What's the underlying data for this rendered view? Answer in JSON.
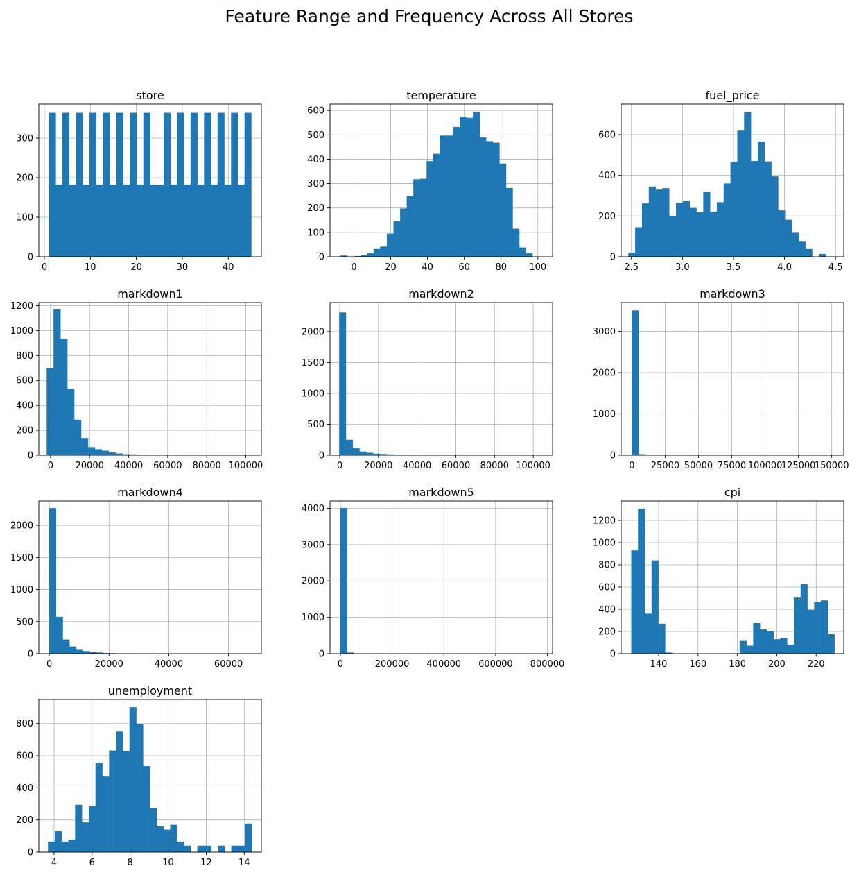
{
  "figure": {
    "title": "Feature Range and Frequency Across All Stores"
  },
  "colors": {
    "bar": "#1f77b4",
    "grid": "#b0b0b0",
    "axis": "#000000"
  },
  "chart_data": [
    {
      "type": "bar",
      "title": "store",
      "xlim": [
        -1.2,
        47.2
      ],
      "ylim": [
        0,
        386
      ],
      "xticks": [
        0,
        10,
        20,
        30,
        40
      ],
      "xtick_labels": [
        "0",
        "10",
        "20",
        "30",
        "40"
      ],
      "yticks": [
        0,
        100,
        200,
        300
      ],
      "ytick_labels": [
        "0",
        "100",
        "200",
        "300"
      ],
      "bin_start": 1,
      "bin_width": 1.4667,
      "values": [
        364,
        182,
        364,
        182,
        364,
        182,
        364,
        182,
        364,
        182,
        364,
        182,
        364,
        182,
        364,
        182,
        182,
        364,
        182,
        364,
        182,
        364,
        182,
        364,
        182,
        364,
        182,
        364,
        182,
        364
      ]
    },
    {
      "type": "bar",
      "title": "temperature",
      "xlim": [
        -13,
        108
      ],
      "ylim": [
        0,
        626
      ],
      "xticks": [
        0,
        20,
        40,
        60,
        80,
        100
      ],
      "xtick_labels": [
        "0",
        "20",
        "40",
        "60",
        "80",
        "100"
      ],
      "yticks": [
        0,
        100,
        200,
        300,
        400,
        500,
        600
      ],
      "ytick_labels": [
        "0",
        "100",
        "200",
        "300",
        "400",
        "500",
        "600"
      ],
      "bin_start": -7.3,
      "bin_width": 3.6,
      "values": [
        5,
        0,
        3,
        6,
        14,
        32,
        42,
        95,
        145,
        198,
        248,
        318,
        320,
        392,
        422,
        497,
        497,
        532,
        574,
        570,
        594,
        490,
        474,
        468,
        382,
        282,
        115,
        38,
        14
      ]
    },
    {
      "type": "bar",
      "title": "fuel_price",
      "xlim": [
        2.4,
        4.58
      ],
      "ylim": [
        0,
        750
      ],
      "xticks": [
        2.5,
        3.0,
        3.5,
        4.0,
        4.5
      ],
      "xtick_labels": [
        "2.5",
        "3.0",
        "3.5",
        "4.0",
        "4.5"
      ],
      "yticks": [
        0,
        200,
        400,
        600
      ],
      "ytick_labels": [
        "0",
        "200",
        "400",
        "600"
      ],
      "bin_start": 2.47,
      "bin_width": 0.0667,
      "values": [
        20,
        145,
        262,
        345,
        330,
        337,
        200,
        265,
        275,
        240,
        218,
        320,
        222,
        268,
        360,
        465,
        620,
        712,
        470,
        565,
        468,
        395,
        228,
        182,
        118,
        74,
        38,
        0,
        14
      ]
    },
    {
      "type": "bar",
      "title": "markdown1",
      "xlim": [
        -6000,
        108000
      ],
      "ylim": [
        0,
        1225
      ],
      "xticks": [
        0,
        20000,
        40000,
        60000,
        80000,
        100000
      ],
      "xtick_labels": [
        "0",
        "20000",
        "40000",
        "60000",
        "80000",
        "100000"
      ],
      "yticks": [
        0,
        200,
        400,
        600,
        800,
        1000,
        1200
      ],
      "ytick_labels": [
        "0",
        "200",
        "400",
        "600",
        "800",
        "1000",
        "1200"
      ],
      "bin_start": -2000,
      "bin_width": 3530,
      "values": [
        700,
        1170,
        935,
        535,
        285,
        138,
        65,
        48,
        36,
        22,
        14,
        8,
        7,
        2,
        2,
        4,
        4,
        2,
        2,
        1,
        0,
        0,
        0,
        0,
        0,
        0,
        0,
        0,
        0,
        1
      ]
    },
    {
      "type": "bar",
      "title": "markdown2",
      "xlim": [
        -5000,
        110000
      ],
      "ylim": [
        0,
        2470
      ],
      "xticks": [
        0,
        20000,
        40000,
        60000,
        80000,
        100000
      ],
      "xtick_labels": [
        "0",
        "20000",
        "40000",
        "60000",
        "80000",
        "100000"
      ],
      "yticks": [
        0,
        500,
        1000,
        1500,
        2000
      ],
      "ytick_labels": [
        "0",
        "500",
        "1000",
        "1500",
        "2000"
      ],
      "bin_start": -300,
      "bin_width": 3505,
      "values": [
        2310,
        250,
        112,
        60,
        40,
        25,
        20,
        14,
        10,
        5,
        4,
        3,
        2,
        2,
        2,
        1,
        1,
        0,
        0,
        0,
        0,
        0,
        0,
        0,
        0,
        0,
        0,
        0,
        0,
        1
      ]
    },
    {
      "type": "bar",
      "title": "markdown3",
      "xlim": [
        -8000,
        159000
      ],
      "ylim": [
        0,
        3700
      ],
      "xticks": [
        0,
        25000,
        50000,
        75000,
        100000,
        125000,
        150000
      ],
      "xtick_labels": [
        "0",
        "25000",
        "50000",
        "75000",
        "100000",
        "125000",
        "150000"
      ],
      "yticks": [
        0,
        1000,
        2000,
        3000
      ],
      "ytick_labels": [
        "0",
        "1000",
        "2000",
        "3000"
      ],
      "bin_start": -100,
      "bin_width": 5100,
      "values": [
        3510,
        25,
        6,
        3,
        2,
        1,
        1,
        0,
        0,
        0,
        0,
        0,
        0,
        0,
        0,
        0,
        0,
        0,
        0,
        0,
        0,
        0,
        0,
        0,
        0,
        0,
        0,
        0,
        0,
        1
      ]
    },
    {
      "type": "bar",
      "title": "markdown4",
      "xlim": [
        -3500,
        71000
      ],
      "ylim": [
        0,
        2380
      ],
      "xticks": [
        0,
        20000,
        40000,
        60000
      ],
      "xtick_labels": [
        "0",
        "20000",
        "40000",
        "60000"
      ],
      "yticks": [
        0,
        500,
        1000,
        1500,
        2000
      ],
      "ytick_labels": [
        "0",
        "500",
        "1000",
        "1500",
        "2000"
      ],
      "bin_start": 0,
      "bin_width": 2250,
      "values": [
        2270,
        575,
        220,
        112,
        60,
        40,
        25,
        18,
        10,
        8,
        5,
        4,
        3,
        2,
        2,
        1,
        1,
        0,
        0,
        0,
        0,
        0,
        0,
        0,
        0,
        0,
        0,
        0,
        0,
        1
      ]
    },
    {
      "type": "bar",
      "title": "markdown5",
      "xlim": [
        -40000,
        820000
      ],
      "ylim": [
        0,
        4200
      ],
      "xticks": [
        0,
        200000,
        400000,
        600000,
        800000
      ],
      "xtick_labels": [
        "0",
        "200000",
        "400000",
        "600000",
        "800000"
      ],
      "yticks": [
        0,
        1000,
        2000,
        3000,
        4000
      ],
      "ytick_labels": [
        "0",
        "1000",
        "2000",
        "3000",
        "4000"
      ],
      "bin_start": -500,
      "bin_width": 25900,
      "values": [
        4010,
        30,
        4,
        2,
        1,
        0,
        0,
        0,
        0,
        0,
        0,
        0,
        0,
        0,
        0,
        0,
        0,
        0,
        0,
        0,
        0,
        0,
        0,
        0,
        0,
        0,
        0,
        0,
        0,
        1
      ]
    },
    {
      "type": "bar",
      "title": "cpi",
      "xlim": [
        121,
        234
      ],
      "ylim": [
        0,
        1375
      ],
      "xticks": [
        140,
        160,
        180,
        200,
        220
      ],
      "xtick_labels": [
        "140",
        "160",
        "180",
        "200",
        "220"
      ],
      "yticks": [
        0,
        200,
        400,
        600,
        800,
        1000,
        1200
      ],
      "ytick_labels": [
        "0",
        "200",
        "400",
        "600",
        "800",
        "1000",
        "1200"
      ],
      "bin_start": 126.1,
      "bin_width": 3.44,
      "values": [
        930,
        1305,
        360,
        840,
        270,
        10,
        0,
        0,
        0,
        0,
        0,
        0,
        0,
        0,
        0,
        0,
        115,
        72,
        275,
        218,
        200,
        130,
        140,
        80,
        505,
        625,
        395,
        465,
        480,
        175
      ]
    },
    {
      "type": "bar",
      "title": "unemployment",
      "xlim": [
        3.2,
        14.9
      ],
      "ylim": [
        0,
        950
      ],
      "xticks": [
        4,
        6,
        8,
        10,
        12,
        14
      ],
      "xtick_labels": [
        "4",
        "6",
        "8",
        "10",
        "12",
        "14"
      ],
      "yticks": [
        0,
        200,
        400,
        600,
        800
      ],
      "ytick_labels": [
        "0",
        "200",
        "400",
        "600",
        "800"
      ],
      "bin_start": 3.68,
      "bin_width": 0.357,
      "values": [
        65,
        130,
        65,
        78,
        295,
        185,
        285,
        555,
        470,
        632,
        750,
        628,
        902,
        795,
        535,
        275,
        160,
        140,
        170,
        65,
        40,
        0,
        40,
        40,
        0,
        40,
        0,
        40,
        40,
        178
      ]
    }
  ]
}
